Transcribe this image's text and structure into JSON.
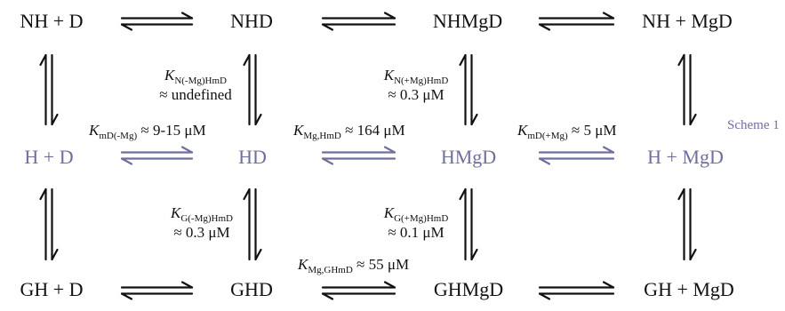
{
  "species": {
    "nh_d": "NH + D",
    "nhd": "NHD",
    "nhmgd": "NHMgD",
    "nh_mgd": "NH + MgD",
    "h_d": "H + D",
    "hd": "HD",
    "hmgd": "HMgD",
    "h_mgd": "H + MgD",
    "gh_d": "GH + D",
    "ghd": "GHD",
    "ghmgd": "GHMgD",
    "gh_mgd": "GH + MgD"
  },
  "constants": {
    "k_n_minus": {
      "symbol": "K",
      "sub": "N(-Mg)HmD",
      "value": "≈ undefined"
    },
    "k_n_plus": {
      "symbol": "K",
      "sub": "N(+Mg)HmD",
      "value": "≈ 0.3 μM"
    },
    "k_md_minus": {
      "symbol": "K",
      "sub": "mD(-Mg)",
      "value": "≈ 9-15 μM"
    },
    "k_mg_hmd": {
      "symbol": "K",
      "sub": "Mg,HmD",
      "value": "≈ 164 μM"
    },
    "k_md_plus": {
      "symbol": "K",
      "sub": "mD(+Mg)",
      "value": "≈ 5 μM"
    },
    "k_g_minus": {
      "symbol": "K",
      "sub": "G(-Mg)HmD",
      "value": "≈ 0.3 μM"
    },
    "k_g_plus": {
      "symbol": "K",
      "sub": "G(+Mg)HmD",
      "value": "≈ 0.1 μM"
    },
    "k_mg_ghmd": {
      "symbol": "K",
      "sub": "Mg,GHmD",
      "value": "≈ 55 μM"
    }
  },
  "scheme_label": "Scheme 1",
  "colors": {
    "text": "#111111",
    "h_row": "#6f6f9f"
  }
}
